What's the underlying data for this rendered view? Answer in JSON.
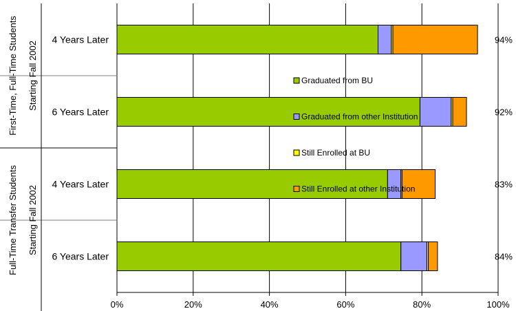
{
  "chart_data": {
    "type": "bar",
    "orientation": "horizontal",
    "stacked": true,
    "groups": [
      {
        "label_line1": "First-Time, Full-Time Students",
        "label_line2": "Starting Fall 2002"
      },
      {
        "label_line1": "Full-Time Transfer Students",
        "label_line2": "Starting Fall 2002"
      }
    ],
    "categories": [
      "4 Years Later",
      "6 Years Later",
      "4 Years Later",
      "6 Years Later"
    ],
    "category_group": [
      0,
      0,
      1,
      1
    ],
    "totals": [
      "94%",
      "92%",
      "83%",
      "84%"
    ],
    "series": [
      {
        "name": "Graduated from BU",
        "color": "#99cc00",
        "values": [
          68.5,
          79.5,
          71.0,
          74.5
        ]
      },
      {
        "name": "Graduated from other Institution",
        "color": "#9999ff",
        "values": [
          3.5,
          8.2,
          3.5,
          6.8
        ]
      },
      {
        "name": "Still Enrolled at BU",
        "color": "#ffff00",
        "values": [
          0.4,
          0.4,
          0.3,
          0.4
        ]
      },
      {
        "name": "Still Enrolled at other Institution",
        "color": "#ff9900",
        "values": [
          22.2,
          3.6,
          8.7,
          2.4
        ]
      }
    ],
    "xlim": [
      0,
      100
    ],
    "xticks": [
      "0%",
      "20%",
      "40%",
      "60%",
      "80%",
      "100%"
    ],
    "legend": "center, overlapping bars"
  }
}
